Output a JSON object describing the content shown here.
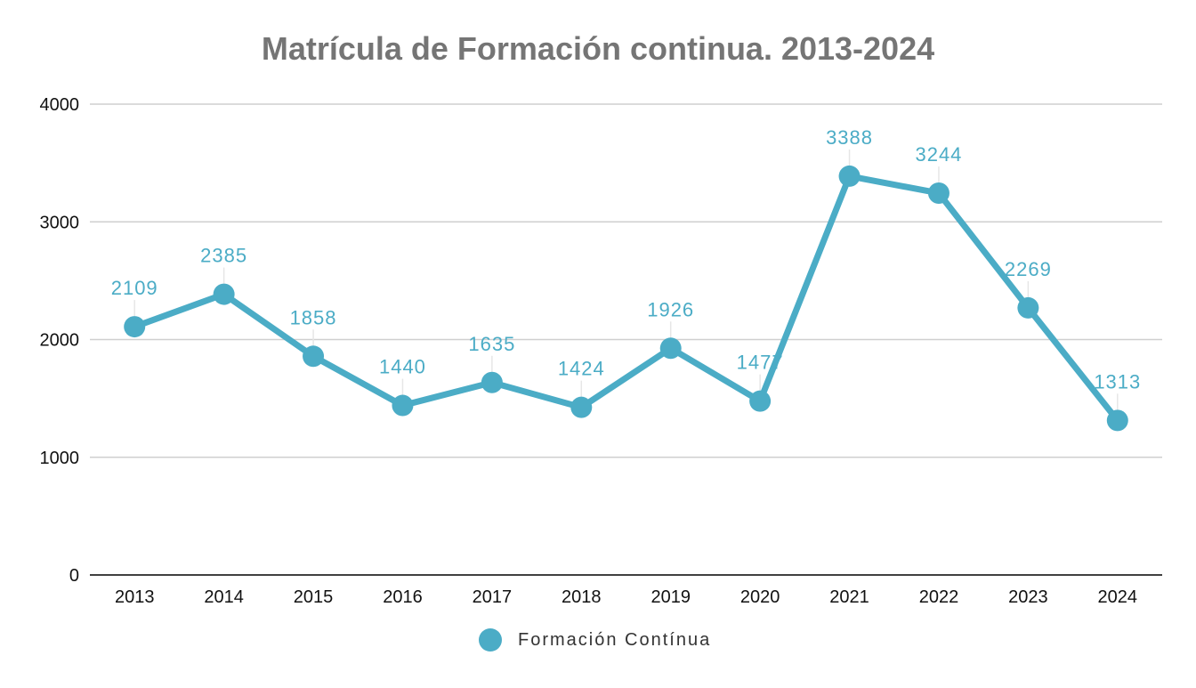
{
  "chart_data": {
    "type": "line",
    "title": "Matrícula de Formación continua. 2013-2024",
    "xlabel": "",
    "ylabel": "",
    "categories": [
      "2013",
      "2014",
      "2015",
      "2016",
      "2017",
      "2018",
      "2019",
      "2020",
      "2021",
      "2022",
      "2023",
      "2024"
    ],
    "series": [
      {
        "name": "Formación Contínua",
        "color": "#4bacc6",
        "values": [
          2109,
          2385,
          1858,
          1440,
          1635,
          1424,
          1926,
          1477,
          3388,
          3244,
          2269,
          1313
        ]
      }
    ],
    "ylim": [
      0,
      4000
    ],
    "yticks": [
      "0",
      "1000",
      "2000",
      "3000",
      "4000"
    ],
    "grid": true,
    "legend_position": "bottom",
    "data_labels": true
  }
}
